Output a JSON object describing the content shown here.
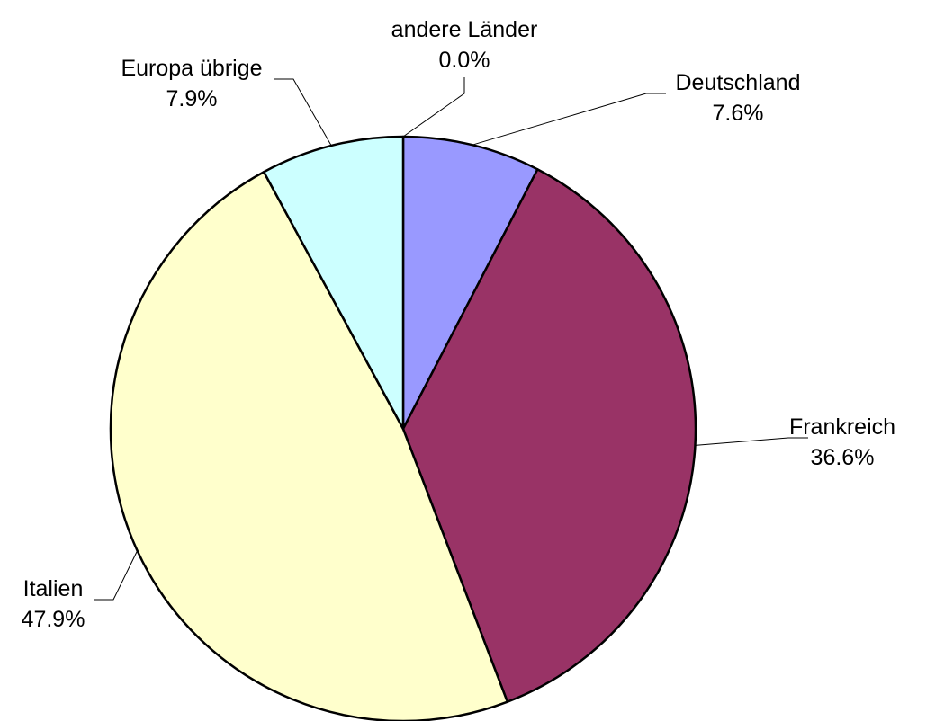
{
  "chart_data": {
    "type": "pie",
    "slices": [
      {
        "name": "Deutschland",
        "value": 7.6,
        "value_label": "7.6%",
        "color": "#9999ff"
      },
      {
        "name": "Frankreich",
        "value": 36.6,
        "value_label": "36.6%",
        "color": "#993366"
      },
      {
        "name": "Italien",
        "value": 47.9,
        "value_label": "47.9%",
        "color": "#ffffcc"
      },
      {
        "name": "Europa übrige",
        "value": 7.9,
        "value_label": "7.9%",
        "color": "#ccffff"
      },
      {
        "name": "andere Länder",
        "value": 0.0,
        "value_label": "0.0%",
        "color": "#ffffff"
      }
    ],
    "slice_outline_color": "#000000",
    "start_angle": "12 o'clock",
    "direction": "clockwise",
    "legend": "none"
  }
}
